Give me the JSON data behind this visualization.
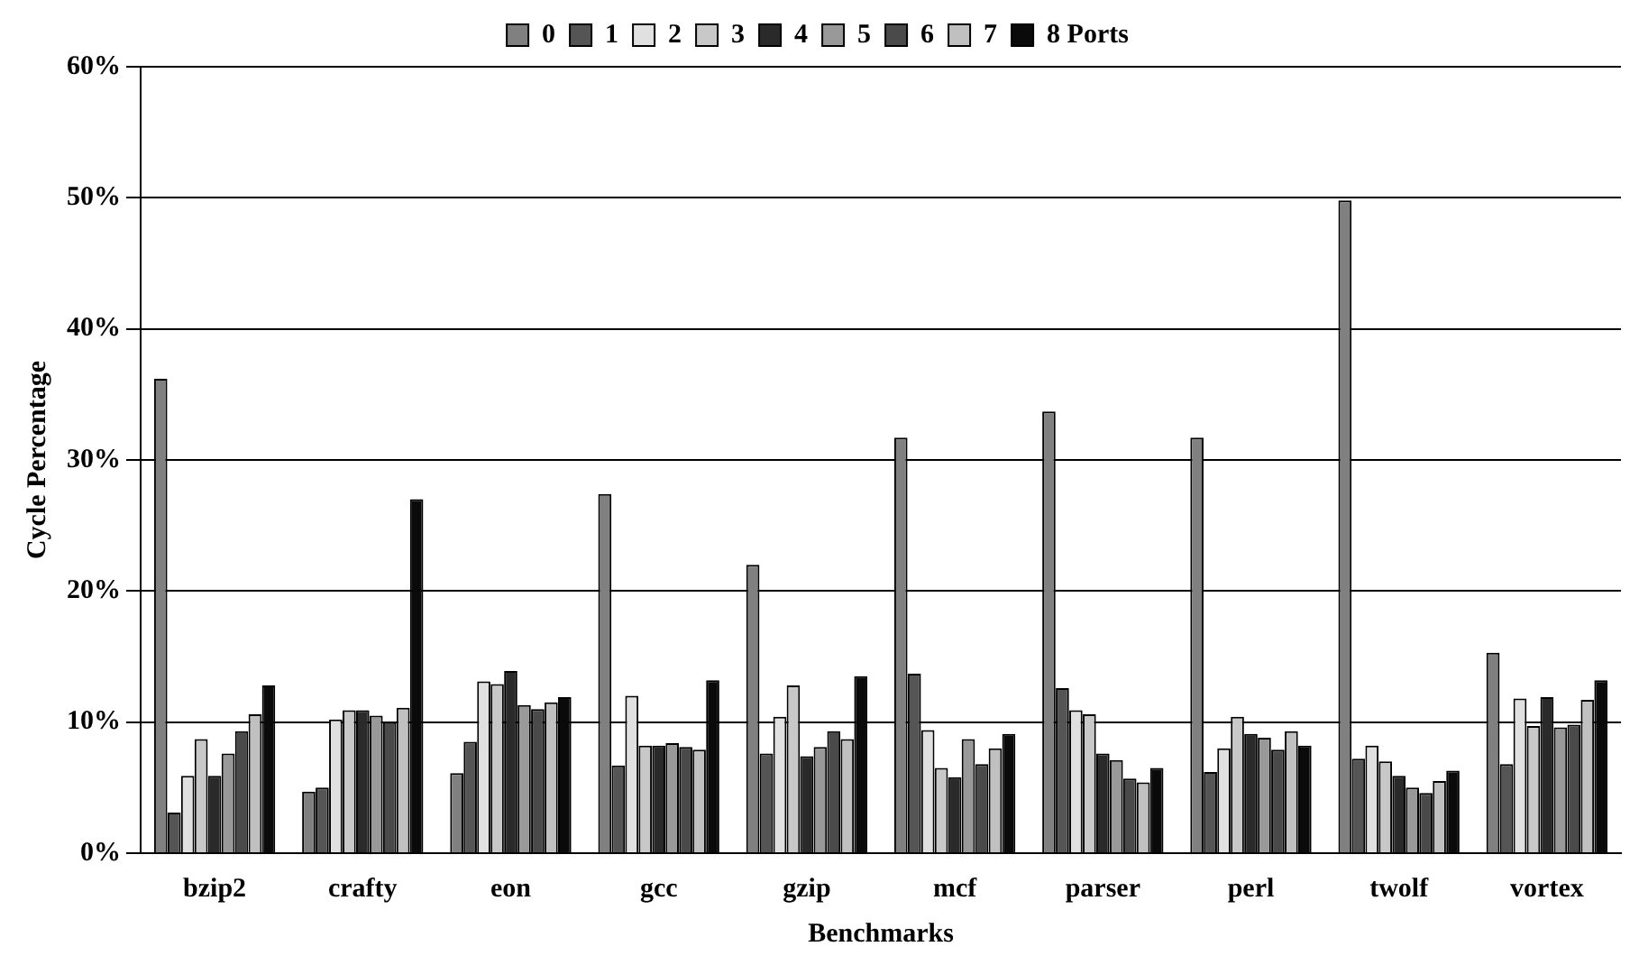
{
  "chart_data": {
    "type": "bar",
    "xlabel": "Benchmarks",
    "ylabel": "Cycle Percentage",
    "categories": [
      "bzip2",
      "crafty",
      "eon",
      "gcc",
      "gzip",
      "mcf",
      "parser",
      "perl",
      "twolf",
      "vortex"
    ],
    "series": [
      {
        "name": "0",
        "color": "#808080",
        "values": [
          36.2,
          4.7,
          6.1,
          27.4,
          22.0,
          31.7,
          33.7,
          31.7,
          49.8,
          15.3
        ]
      },
      {
        "name": "1",
        "color": "#555555",
        "values": [
          3.1,
          5.0,
          8.5,
          6.7,
          7.6,
          13.7,
          12.6,
          6.2,
          7.2,
          6.8
        ]
      },
      {
        "name": "2",
        "color": "#e0e0e0",
        "values": [
          5.9,
          10.2,
          13.1,
          12.0,
          10.4,
          9.4,
          10.9,
          8.0,
          8.2,
          11.8
        ]
      },
      {
        "name": "3",
        "color": "#c8c8c8",
        "values": [
          8.7,
          10.9,
          12.9,
          8.2,
          12.8,
          6.5,
          10.6,
          10.4,
          7.0,
          9.7
        ]
      },
      {
        "name": "4",
        "color": "#2a2a2a",
        "values": [
          5.9,
          10.9,
          13.9,
          8.2,
          7.4,
          5.8,
          7.6,
          9.1,
          5.9,
          11.9
        ]
      },
      {
        "name": "5",
        "color": "#999999",
        "values": [
          7.6,
          10.5,
          11.3,
          8.4,
          8.1,
          8.7,
          7.1,
          8.8,
          5.0,
          9.6
        ]
      },
      {
        "name": "6",
        "color": "#4a4a4a",
        "values": [
          9.3,
          10.0,
          11.0,
          8.1,
          9.3,
          6.8,
          5.7,
          7.9,
          4.6,
          9.8
        ]
      },
      {
        "name": "7",
        "color": "#c0c0c0",
        "values": [
          10.6,
          11.1,
          11.5,
          7.9,
          8.7,
          8.0,
          5.4,
          9.3,
          5.5,
          11.7
        ]
      },
      {
        "name": "8 Ports",
        "color": "#0a0a0a",
        "values": [
          12.8,
          27.0,
          11.9,
          13.2,
          13.5,
          9.1,
          6.5,
          8.2,
          6.3,
          13.2
        ]
      }
    ],
    "ylim": [
      0,
      60
    ],
    "yticks": [
      {
        "value": 0,
        "label": "0%"
      },
      {
        "value": 10,
        "label": "10%"
      },
      {
        "value": 20,
        "label": "20%"
      },
      {
        "value": 30,
        "label": "30%"
      },
      {
        "value": 40,
        "label": "40%"
      },
      {
        "value": 50,
        "label": "50%"
      },
      {
        "value": 60,
        "label": "60%"
      }
    ],
    "grid": "y",
    "legend": "top"
  }
}
